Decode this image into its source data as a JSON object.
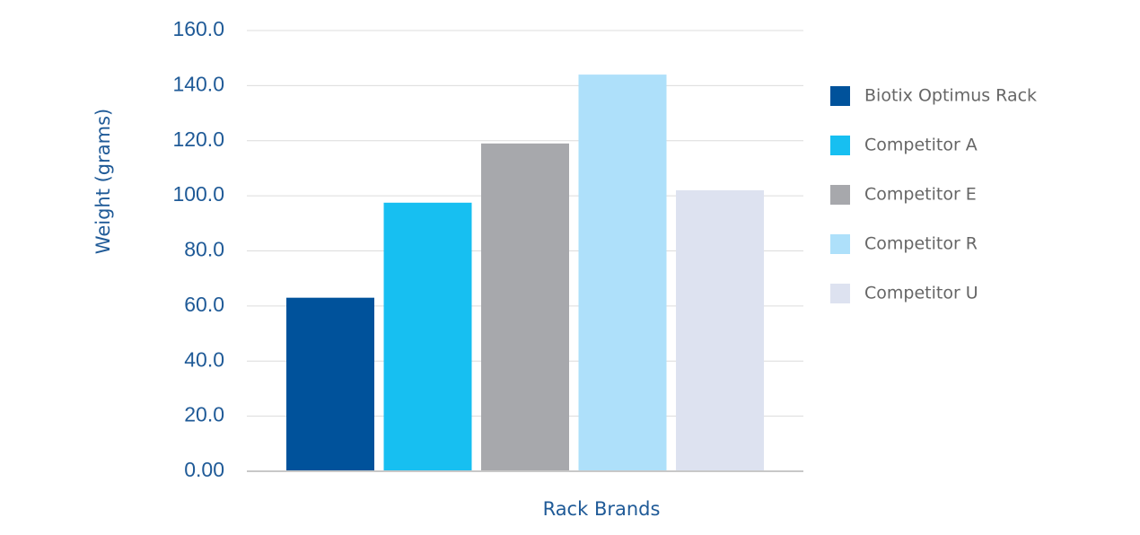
{
  "chart_data": {
    "type": "bar",
    "y_label": "Weight (grams)",
    "x_label": "Rack Brands",
    "categories": [
      null
    ],
    "series": [
      {
        "name": "Biotix Optimus Rack",
        "color": "#00529b",
        "values": [
          63
        ]
      },
      {
        "name": "Competitor A",
        "color": "#17bff1",
        "values": [
          97.5
        ]
      },
      {
        "name": "Competitor E",
        "color": "#a7a8ac",
        "values": [
          119
        ]
      },
      {
        "name": "Competitor R",
        "color": "#aee0fa",
        "values": [
          144
        ]
      },
      {
        "name": "Competitor U",
        "color": "#dde2f0",
        "values": [
          102
        ]
      }
    ],
    "ylim": [
      0,
      160
    ],
    "yticks": [
      {
        "value": 0,
        "label": "0.00"
      },
      {
        "value": 20,
        "label": "20.0"
      },
      {
        "value": 40,
        "label": "40.0"
      },
      {
        "value": 60,
        "label": "60.0"
      },
      {
        "value": 80,
        "label": "80.0"
      },
      {
        "value": 100,
        "label": "100.0"
      },
      {
        "value": 120,
        "label": "120.0"
      },
      {
        "value": 140,
        "label": "140.0"
      },
      {
        "value": 160,
        "label": "160.0"
      }
    ],
    "grid": true,
    "legend": "right"
  }
}
